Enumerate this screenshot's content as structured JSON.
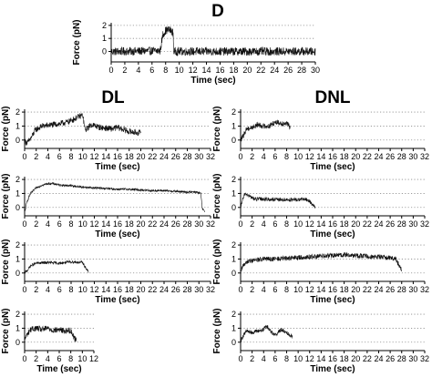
{
  "headings": {
    "top": "D",
    "left": "DL",
    "right": "DNL"
  },
  "chart_data": [
    {
      "id": "D",
      "type": "line",
      "xlabel": "Time (sec)",
      "ylabel": "Force (pN)",
      "xlim": [
        0,
        30
      ],
      "ylim": [
        -0.8,
        2.2
      ],
      "xticks": [
        0,
        2,
        4,
        6,
        8,
        10,
        12,
        14,
        16,
        18,
        20,
        22,
        24,
        26,
        28,
        30
      ],
      "yticks": [
        0,
        1,
        2
      ],
      "grid": "horizontal-dotted",
      "series": [
        {
          "x": [
            0,
            7.2,
            7.6,
            8.0,
            8.4,
            8.8,
            9.1,
            9.2,
            30
          ],
          "y": [
            0,
            0.05,
            1.3,
            1.6,
            1.65,
            1.6,
            1.4,
            0,
            0
          ],
          "noise": 0.32
        }
      ]
    },
    {
      "id": "DL-1",
      "type": "line",
      "xlabel": "Time (sec)",
      "ylabel": "Force (pN)",
      "xlim": [
        0,
        32
      ],
      "ylim": [
        -0.6,
        2.2
      ],
      "xticks": [
        0,
        2,
        4,
        6,
        8,
        10,
        12,
        14,
        16,
        18,
        20,
        22,
        24,
        26,
        28,
        30,
        32
      ],
      "yticks": [
        0,
        1,
        2
      ],
      "grid": "horizontal-dotted",
      "series": [
        {
          "x": [
            0,
            0.5,
            1.2,
            1.8,
            3,
            5,
            6.5,
            7.5,
            8.5,
            9.5,
            10,
            10.4,
            11.5,
            13,
            15,
            16,
            18,
            20
          ],
          "y": [
            -0.1,
            -0.2,
            0.2,
            0.7,
            1.0,
            1.1,
            1.2,
            1.3,
            1.5,
            1.7,
            1.8,
            0.7,
            1.1,
            0.9,
            0.8,
            0.9,
            0.6,
            0.5
          ],
          "noise": 0.22
        }
      ]
    },
    {
      "id": "DL-2",
      "type": "line",
      "xlabel": "Time (sec)",
      "ylabel": "Force (pN)",
      "xlim": [
        0,
        32
      ],
      "ylim": [
        -0.6,
        2.2
      ],
      "xticks": [
        0,
        2,
        4,
        6,
        8,
        10,
        12,
        14,
        16,
        18,
        20,
        22,
        24,
        26,
        28,
        30,
        32
      ],
      "yticks": [
        0,
        1,
        2
      ],
      "grid": "horizontal-dotted",
      "series": [
        {
          "x": [
            0,
            0.4,
            1,
            2,
            3,
            4,
            5,
            6,
            8,
            10,
            12,
            14,
            16,
            18,
            20,
            22,
            24,
            26,
            28,
            29.5,
            30.3,
            30.6,
            31
          ],
          "y": [
            -0.4,
            0.4,
            1.0,
            1.4,
            1.6,
            1.7,
            1.7,
            1.6,
            1.55,
            1.45,
            1.4,
            1.35,
            1.3,
            1.3,
            1.25,
            1.2,
            1.2,
            1.15,
            1.1,
            1.1,
            1.0,
            -0.1,
            -0.3
          ],
          "noise": 0.08
        }
      ]
    },
    {
      "id": "DL-3",
      "type": "line",
      "xlabel": "Time (sec)",
      "ylabel": "Force (pN)",
      "xlim": [
        0,
        32
      ],
      "ylim": [
        -0.6,
        2.2
      ],
      "xticks": [
        0,
        2,
        4,
        6,
        8,
        10,
        12,
        14,
        16,
        18,
        20,
        22,
        24,
        26,
        28,
        30,
        32
      ],
      "yticks": [
        0,
        1,
        2
      ],
      "grid": "horizontal-dotted",
      "series": [
        {
          "x": [
            0,
            0.5,
            1,
            2,
            4,
            6,
            8,
            10,
            10.6,
            11
          ],
          "y": [
            0,
            0.2,
            0.5,
            0.7,
            0.75,
            0.7,
            0.8,
            0.75,
            0.3,
            0.1
          ],
          "noise": 0.1
        }
      ]
    },
    {
      "id": "DL-4",
      "type": "line",
      "xlabel": "Time (sec)",
      "ylabel": "Force (pN)",
      "xlim": [
        0,
        12
      ],
      "ylim": [
        -0.6,
        2.2
      ],
      "xticks": [
        0,
        2,
        4,
        6,
        8,
        10,
        12
      ],
      "yticks": [
        0,
        1,
        2
      ],
      "grid": "horizontal-dotted",
      "series": [
        {
          "x": [
            0,
            0.5,
            1,
            2,
            3,
            4,
            5,
            6,
            7,
            8,
            8.5,
            9
          ],
          "y": [
            0.2,
            0.6,
            0.9,
            1.0,
            0.9,
            1.0,
            0.85,
            0.9,
            0.8,
            0.85,
            0.4,
            0.1
          ],
          "noise": 0.22
        }
      ]
    },
    {
      "id": "DNL-1",
      "type": "line",
      "xlabel": "Time (sec)",
      "ylabel": "Force (pN)",
      "xlim": [
        0,
        32
      ],
      "ylim": [
        -0.6,
        2.2
      ],
      "xticks": [
        0,
        2,
        4,
        6,
        8,
        10,
        12,
        14,
        16,
        18,
        20,
        22,
        24,
        26,
        28,
        30,
        32
      ],
      "yticks": [
        0,
        1,
        2
      ],
      "grid": "horizontal-dotted",
      "series": [
        {
          "x": [
            0,
            0.5,
            1,
            2,
            3,
            4,
            5,
            6,
            7,
            8,
            8.6
          ],
          "y": [
            0,
            0.3,
            0.8,
            0.9,
            1.1,
            1.0,
            1.0,
            1.3,
            1.2,
            1.2,
            0.9
          ],
          "noise": 0.2
        }
      ]
    },
    {
      "id": "DNL-2",
      "type": "line",
      "xlabel": "Time (sec)",
      "ylabel": "Force (pN)",
      "xlim": [
        0,
        32
      ],
      "ylim": [
        -0.6,
        2.2
      ],
      "xticks": [
        0,
        2,
        4,
        6,
        8,
        10,
        12,
        14,
        16,
        18,
        20,
        22,
        24,
        26,
        28,
        30,
        32
      ],
      "yticks": [
        0,
        1,
        2
      ],
      "grid": "horizontal-dotted",
      "series": [
        {
          "x": [
            0,
            0.3,
            0.8,
            1.5,
            2.5,
            4,
            6,
            8,
            10,
            11,
            12,
            12.5,
            13
          ],
          "y": [
            0,
            0.5,
            1.0,
            0.8,
            0.6,
            0.6,
            0.55,
            0.55,
            0.55,
            0.6,
            0.45,
            0.2,
            0.05
          ],
          "noise": 0.14
        }
      ]
    },
    {
      "id": "DNL-3",
      "type": "line",
      "xlabel": "Time (sec)",
      "ylabel": "Force (pN)",
      "xlim": [
        0,
        32
      ],
      "ylim": [
        -0.6,
        2.2
      ],
      "xticks": [
        0,
        2,
        4,
        6,
        8,
        10,
        12,
        14,
        16,
        18,
        20,
        22,
        24,
        26,
        28,
        30,
        32
      ],
      "yticks": [
        0,
        1,
        2
      ],
      "grid": "horizontal-dotted",
      "series": [
        {
          "x": [
            0,
            0.4,
            1,
            2,
            4,
            6,
            8,
            10,
            12,
            14,
            16,
            18,
            20,
            22,
            24,
            26,
            27,
            27.6,
            28
          ],
          "y": [
            0,
            0.5,
            0.8,
            0.9,
            1.0,
            1.0,
            1.05,
            1.1,
            1.15,
            1.2,
            1.25,
            1.3,
            1.25,
            1.2,
            1.15,
            1.1,
            1.0,
            0.5,
            0.2
          ],
          "noise": 0.18
        }
      ]
    },
    {
      "id": "DNL-4",
      "type": "line",
      "xlabel": "Time (sec)",
      "ylabel": "Force (pN)",
      "xlim": [
        0,
        32
      ],
      "ylim": [
        -0.6,
        2.2
      ],
      "xticks": [
        0,
        2,
        4,
        6,
        8,
        10,
        12,
        14,
        16,
        18,
        20,
        22,
        24,
        26,
        28,
        30,
        32
      ],
      "yticks": [
        0,
        1,
        2
      ],
      "grid": "horizontal-dotted",
      "series": [
        {
          "x": [
            0,
            0.5,
            1,
            2,
            3,
            4,
            4.5,
            5,
            6,
            7,
            8,
            9
          ],
          "y": [
            0.1,
            0.5,
            0.8,
            0.7,
            0.8,
            0.9,
            1.2,
            0.9,
            0.5,
            0.9,
            0.7,
            0.4
          ],
          "noise": 0.15
        }
      ]
    }
  ]
}
